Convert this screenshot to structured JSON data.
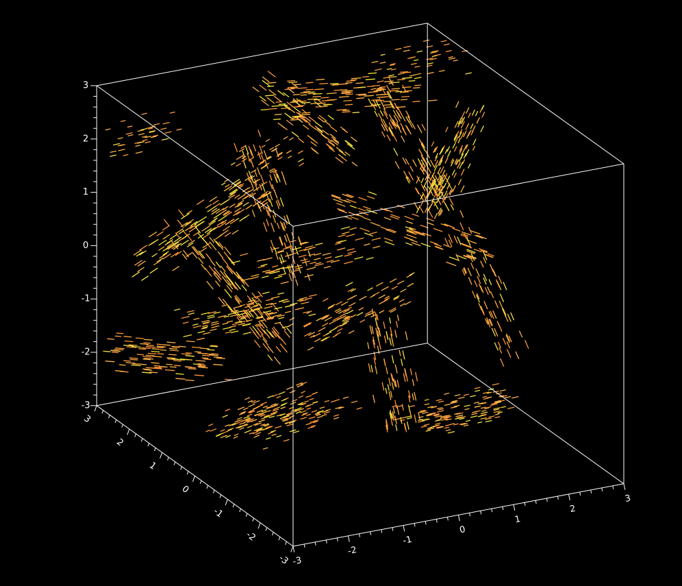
{
  "chart_data": {
    "type": "scatter",
    "plot_style": "3D vector field (arrow glyphs) inside a wireframe cube",
    "background_color": "#000000",
    "axis_color": "#ffffff",
    "colors": {
      "arrows_primary": "#ff9a3c",
      "arrows_secondary": "#ffb347",
      "arrows_highlight": "#f2e640"
    },
    "grid": false,
    "legend": "none",
    "axes": {
      "x": {
        "range": [
          -3,
          3
        ],
        "ticks": [
          -3,
          -2,
          -1,
          0,
          1,
          2,
          3
        ],
        "tick_labels": [
          "-3",
          "-2",
          "-1",
          "0",
          "1",
          "2",
          "3"
        ]
      },
      "y": {
        "range": [
          -3,
          3
        ],
        "ticks": [
          -3,
          -2,
          -1,
          0,
          1,
          2,
          3
        ],
        "tick_labels": [
          "-3",
          "-2",
          "-1",
          "0",
          "1",
          "2",
          "3"
        ]
      },
      "z": {
        "range": [
          -3,
          3
        ],
        "ticks": [
          -3,
          -2,
          -1,
          0,
          1,
          2,
          3
        ],
        "tick_labels": [
          "-3",
          "-2",
          "-1",
          "0",
          "1",
          "2",
          "3"
        ]
      }
    },
    "structures": [
      {
        "x": -1.6,
        "y": 2.2,
        "z": 0.4,
        "u": 0.6,
        "v": -0.6,
        "w": 0.8,
        "strength": 0.9
      },
      {
        "x": -1.2,
        "y": 1.9,
        "z": -0.6,
        "u": 0.5,
        "v": -0.5,
        "w": -0.9,
        "strength": 0.8
      },
      {
        "x": -2.4,
        "y": 2.6,
        "z": -2.0,
        "u": 1.0,
        "v": -0.2,
        "w": -0.2,
        "strength": 1.0
      },
      {
        "x": -0.8,
        "y": 2.4,
        "z": -1.5,
        "u": 0.9,
        "v": -0.1,
        "w": 0.1,
        "strength": 0.7
      },
      {
        "x": -1.4,
        "y": 0.8,
        "z": -2.6,
        "u": 0.4,
        "v": -0.6,
        "w": 0.5,
        "strength": 0.9
      },
      {
        "x": -0.6,
        "y": 1.6,
        "z": 0.8,
        "u": 0.2,
        "v": -0.3,
        "w": -1.0,
        "strength": 0.6
      },
      {
        "x": 0.4,
        "y": 2.8,
        "z": 2.0,
        "u": 0.6,
        "v": -0.5,
        "w": -0.6,
        "strength": 0.8
      },
      {
        "x": 1.0,
        "y": 2.2,
        "z": 2.4,
        "u": 0.8,
        "v": -0.6,
        "w": 0.2,
        "strength": 0.85
      },
      {
        "x": 1.8,
        "y": 1.6,
        "z": 1.6,
        "u": 0.3,
        "v": -0.4,
        "w": -0.9,
        "strength": 0.75
      },
      {
        "x": 2.2,
        "y": 1.0,
        "z": 1.4,
        "u": 0.2,
        "v": -0.3,
        "w": 0.9,
        "strength": 0.9
      },
      {
        "x": 1.6,
        "y": 1.2,
        "z": 0.2,
        "u": 0.9,
        "v": -0.5,
        "w": -0.4,
        "strength": 0.6
      },
      {
        "x": 0.4,
        "y": 1.0,
        "z": -1.0,
        "u": 0.7,
        "v": -0.2,
        "w": 0.4,
        "strength": 0.6
      },
      {
        "x": 0.8,
        "y": 0.4,
        "z": -2.0,
        "u": 0.1,
        "v": -0.2,
        "w": -1.0,
        "strength": 0.6
      },
      {
        "x": 1.6,
        "y": -0.2,
        "z": -2.6,
        "u": 0.6,
        "v": -0.3,
        "w": 0.2,
        "strength": 0.9
      },
      {
        "x": -1.0,
        "y": 0.2,
        "z": -2.4,
        "u": 0.5,
        "v": -0.4,
        "w": 0.3,
        "strength": 0.5
      },
      {
        "x": 0.2,
        "y": 2.0,
        "z": -0.4,
        "u": 0.8,
        "v": -0.4,
        "w": 0.3,
        "strength": 0.5
      },
      {
        "x": -0.4,
        "y": 2.8,
        "z": 1.0,
        "u": 0.3,
        "v": -0.6,
        "w": 0.6,
        "strength": 0.5
      },
      {
        "x": 2.4,
        "y": 0.2,
        "z": -0.6,
        "u": 0.2,
        "v": -0.4,
        "w": -0.9,
        "strength": 0.5
      },
      {
        "x": 2.6,
        "y": 2.4,
        "z": 2.6,
        "u": 0.5,
        "v": -0.5,
        "w": 0.3,
        "strength": 0.4
      },
      {
        "x": -2.6,
        "y": 2.9,
        "z": 2.0,
        "u": 0.6,
        "v": -0.3,
        "w": 0.2,
        "strength": 0.4
      }
    ]
  }
}
